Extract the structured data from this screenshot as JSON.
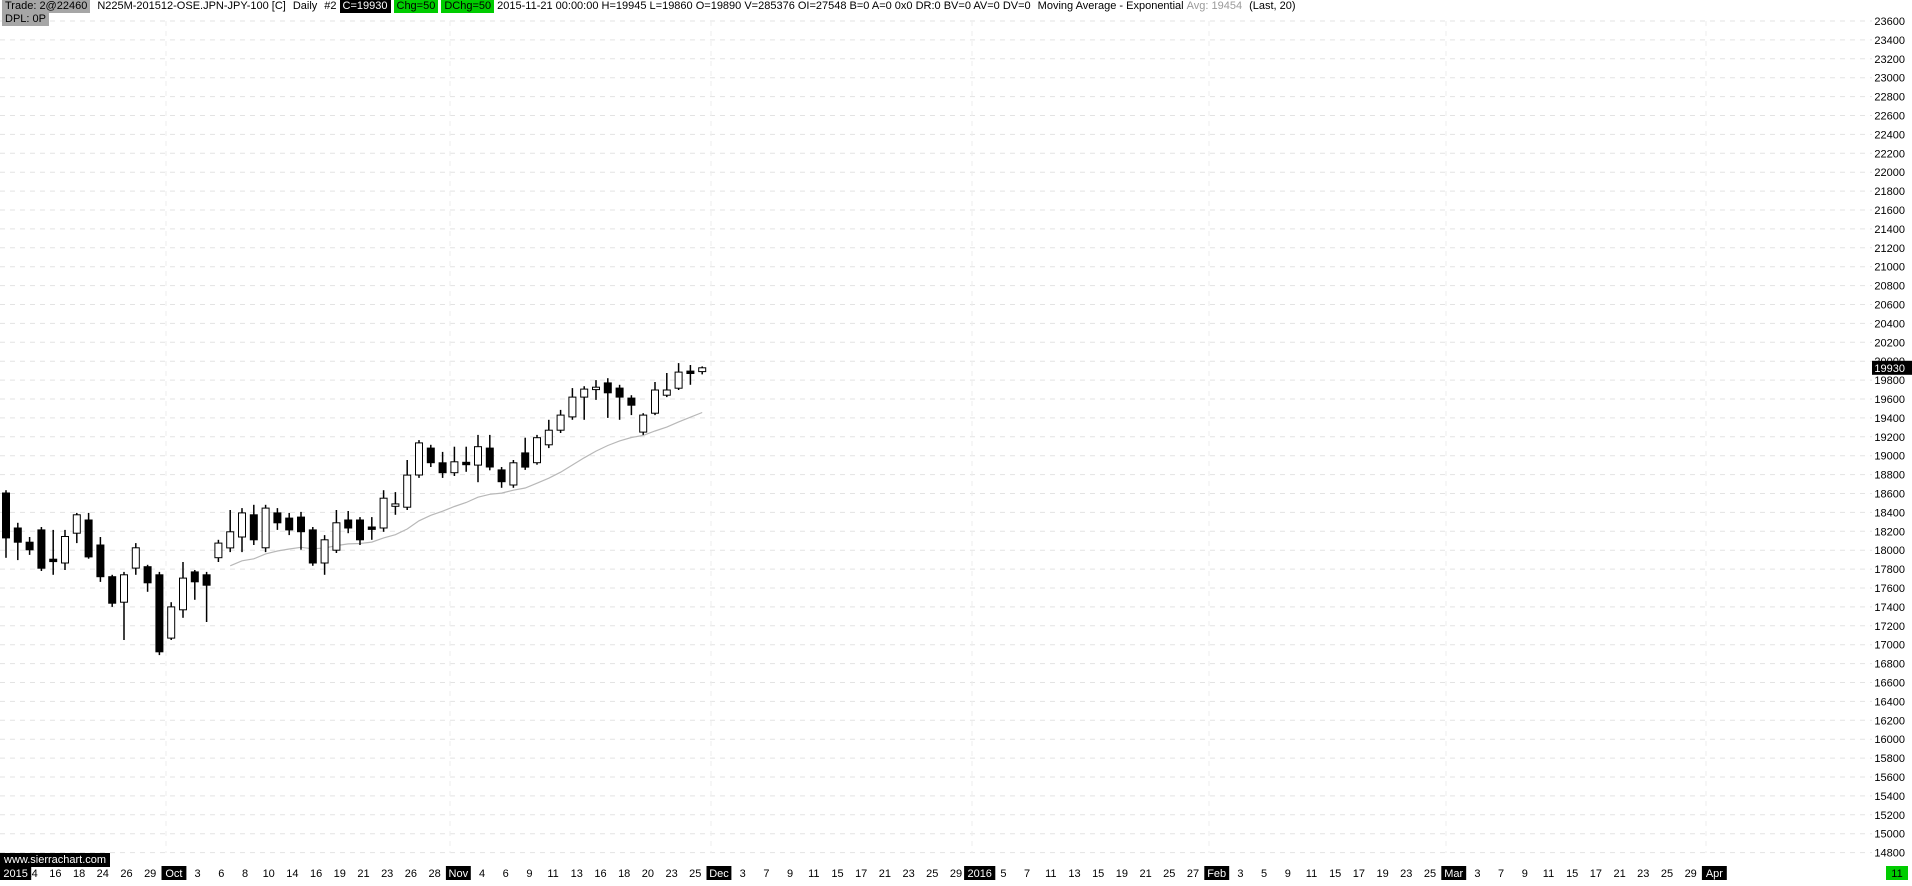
{
  "header": {
    "trade_label": "Trade: 2@22460",
    "symbol": "N225M-201512-OSE.JPN-JPY-100 [C]",
    "period": "Daily",
    "chart_number": "#2",
    "close_chip": "C=19930",
    "chg_chip": "Chg=50",
    "dchg_chip": "DChg=50",
    "bar_info": "2015-11-21 00:00:00 H=19945 L=19860 O=19890 V=285376 OI=27548 B=0 A=0 0x0 DR:0 BV=0 AV=0 DV=0",
    "study_name": "Moving Average - Exponential",
    "study_avg": "Avg: 19454",
    "study_params": "(Last, 20)",
    "dpl_label": "DPL: 0P"
  },
  "watermark": "www.sierrachart.com",
  "price_axis": {
    "max": 23600,
    "min": 14800,
    "step": 200,
    "last_price": 19930
  },
  "date_axis": {
    "labels": [
      {
        "t": "2015",
        "hl": true
      },
      {
        "t": "14"
      },
      {
        "t": "16"
      },
      {
        "t": "18"
      },
      {
        "t": "24"
      },
      {
        "t": "26"
      },
      {
        "t": "29"
      },
      {
        "t": "Oct",
        "hl": true
      },
      {
        "t": "3"
      },
      {
        "t": "6"
      },
      {
        "t": "8"
      },
      {
        "t": "10"
      },
      {
        "t": "14"
      },
      {
        "t": "16"
      },
      {
        "t": "19"
      },
      {
        "t": "21"
      },
      {
        "t": "23"
      },
      {
        "t": "26"
      },
      {
        "t": "28"
      },
      {
        "t": "Nov",
        "hl": true
      },
      {
        "t": "4"
      },
      {
        "t": "6"
      },
      {
        "t": "9"
      },
      {
        "t": "11"
      },
      {
        "t": "13"
      },
      {
        "t": "16"
      },
      {
        "t": "18"
      },
      {
        "t": "20"
      },
      {
        "t": "23"
      },
      {
        "t": "25"
      },
      {
        "t": "Dec",
        "hl": true
      },
      {
        "t": "3"
      },
      {
        "t": "7"
      },
      {
        "t": "9"
      },
      {
        "t": "11"
      },
      {
        "t": "15"
      },
      {
        "t": "17"
      },
      {
        "t": "21"
      },
      {
        "t": "23"
      },
      {
        "t": "25"
      },
      {
        "t": "29"
      },
      {
        "t": "2016",
        "hl": true
      },
      {
        "t": "5"
      },
      {
        "t": "7"
      },
      {
        "t": "11"
      },
      {
        "t": "13"
      },
      {
        "t": "15"
      },
      {
        "t": "19"
      },
      {
        "t": "21"
      },
      {
        "t": "25"
      },
      {
        "t": "27"
      },
      {
        "t": "Feb",
        "hl": true
      },
      {
        "t": "3"
      },
      {
        "t": "5"
      },
      {
        "t": "9"
      },
      {
        "t": "11"
      },
      {
        "t": "15"
      },
      {
        "t": "17"
      },
      {
        "t": "19"
      },
      {
        "t": "23"
      },
      {
        "t": "25"
      },
      {
        "t": "Mar",
        "hl": true
      },
      {
        "t": "3"
      },
      {
        "t": "7"
      },
      {
        "t": "9"
      },
      {
        "t": "11"
      },
      {
        "t": "15"
      },
      {
        "t": "17"
      },
      {
        "t": "21"
      },
      {
        "t": "23"
      },
      {
        "t": "25"
      },
      {
        "t": "29"
      },
      {
        "t": "Apr",
        "hl": true
      }
    ],
    "end_label": {
      "t": "11",
      "green": true
    }
  },
  "chart_data": {
    "type": "candlestick-ohlc",
    "title": "N225M-201512-OSE.JPN-JPY-100 [C] Daily",
    "ylim": [
      14800,
      23600
    ],
    "grid": "dashed-horizontal",
    "last_bar": {
      "date": "2015-11-21",
      "open": 19890,
      "high": 19945,
      "low": 19860,
      "close": 19930,
      "volume": 285376,
      "open_interest": 27548
    },
    "candles_ohlc": [
      [
        18605,
        18635,
        17920,
        18130
      ],
      [
        18235,
        18290,
        17895,
        18085
      ],
      [
        18085,
        18140,
        17950,
        18005
      ],
      [
        18215,
        18245,
        17780,
        17810
      ],
      [
        17905,
        18215,
        17740,
        17880
      ],
      [
        17865,
        18215,
        17790,
        18145
      ],
      [
        18180,
        18395,
        18075,
        18375
      ],
      [
        18320,
        18395,
        17910,
        17930
      ],
      [
        18055,
        18140,
        17665,
        17720
      ],
      [
        17720,
        17740,
        17400,
        17440
      ],
      [
        17450,
        17770,
        17050,
        17740
      ],
      [
        17810,
        18075,
        17740,
        18025
      ],
      [
        17825,
        17845,
        17560,
        17655
      ],
      [
        17740,
        17770,
        16890,
        16925
      ],
      [
        17070,
        17450,
        17050,
        17400
      ],
      [
        17370,
        17875,
        17285,
        17705
      ],
      [
        17770,
        17790,
        17475,
        17665
      ],
      [
        17740,
        17770,
        17240,
        17630
      ],
      [
        17920,
        18110,
        17875,
        18075
      ],
      [
        18025,
        18425,
        17980,
        18195
      ],
      [
        18140,
        18445,
        17980,
        18395
      ],
      [
        18375,
        18480,
        18055,
        18110
      ],
      [
        18025,
        18480,
        17980,
        18445
      ],
      [
        18395,
        18445,
        18215,
        18290
      ],
      [
        18340,
        18395,
        18160,
        18215
      ],
      [
        18350,
        18405,
        18005,
        18195
      ],
      [
        18215,
        18245,
        17835,
        17865
      ],
      [
        17865,
        18160,
        17740,
        18110
      ],
      [
        18000,
        18425,
        17970,
        18290
      ],
      [
        18320,
        18415,
        18180,
        18235
      ],
      [
        18320,
        18350,
        18055,
        18110
      ],
      [
        18245,
        18350,
        18110,
        18225
      ],
      [
        18235,
        18635,
        18195,
        18550
      ],
      [
        18465,
        18615,
        18375,
        18490
      ],
      [
        18455,
        18955,
        18425,
        18795
      ],
      [
        18795,
        19165,
        18765,
        19135
      ],
      [
        19080,
        19115,
        18880,
        18925
      ],
      [
        18925,
        19040,
        18765,
        18820
      ],
      [
        18820,
        19095,
        18785,
        18935
      ],
      [
        18930,
        19095,
        18830,
        18910
      ],
      [
        18900,
        19220,
        18720,
        19095
      ],
      [
        19080,
        19220,
        18845,
        18880
      ],
      [
        18850,
        18880,
        18660,
        18725
      ],
      [
        18690,
        18955,
        18660,
        18925
      ],
      [
        19030,
        19190,
        18850,
        18880
      ],
      [
        18925,
        19220,
        18905,
        19190
      ],
      [
        19115,
        19380,
        19080,
        19270
      ],
      [
        19270,
        19485,
        19240,
        19430
      ],
      [
        19410,
        19715,
        19380,
        19620
      ],
      [
        19620,
        19735,
        19380,
        19705
      ],
      [
        19700,
        19800,
        19590,
        19725
      ],
      [
        19770,
        19820,
        19400,
        19665
      ],
      [
        19715,
        19750,
        19380,
        19620
      ],
      [
        19610,
        19640,
        19430,
        19535
      ],
      [
        19250,
        19450,
        19220,
        19430
      ],
      [
        19450,
        19780,
        19430,
        19695
      ],
      [
        19640,
        19875,
        19620,
        19695
      ],
      [
        19715,
        19980,
        19695,
        19885
      ],
      [
        19895,
        19960,
        19750,
        19875
      ],
      [
        19890,
        19945,
        19860,
        19930
      ]
    ],
    "study": {
      "name": "Moving Average - Exponential",
      "input": "Last",
      "period": 20,
      "last_value": 19454,
      "draw_from_bar": 19
    }
  },
  "colors": {
    "chip_gray": "#a6a6a6",
    "chip_black_bg": "#000000",
    "highlight_green": "#00cc00",
    "muted_text": "#9a9a9a",
    "grid_line": "#e3e3e3",
    "month_grid_line": "#eeeeee",
    "up_candle_fill": "#ffffff",
    "down_candle_fill": "#000000",
    "candle_outline": "#000000",
    "ma_line": "#b8b8b8",
    "last_price_bg": "#000000",
    "last_price_text": "#ffffff"
  }
}
